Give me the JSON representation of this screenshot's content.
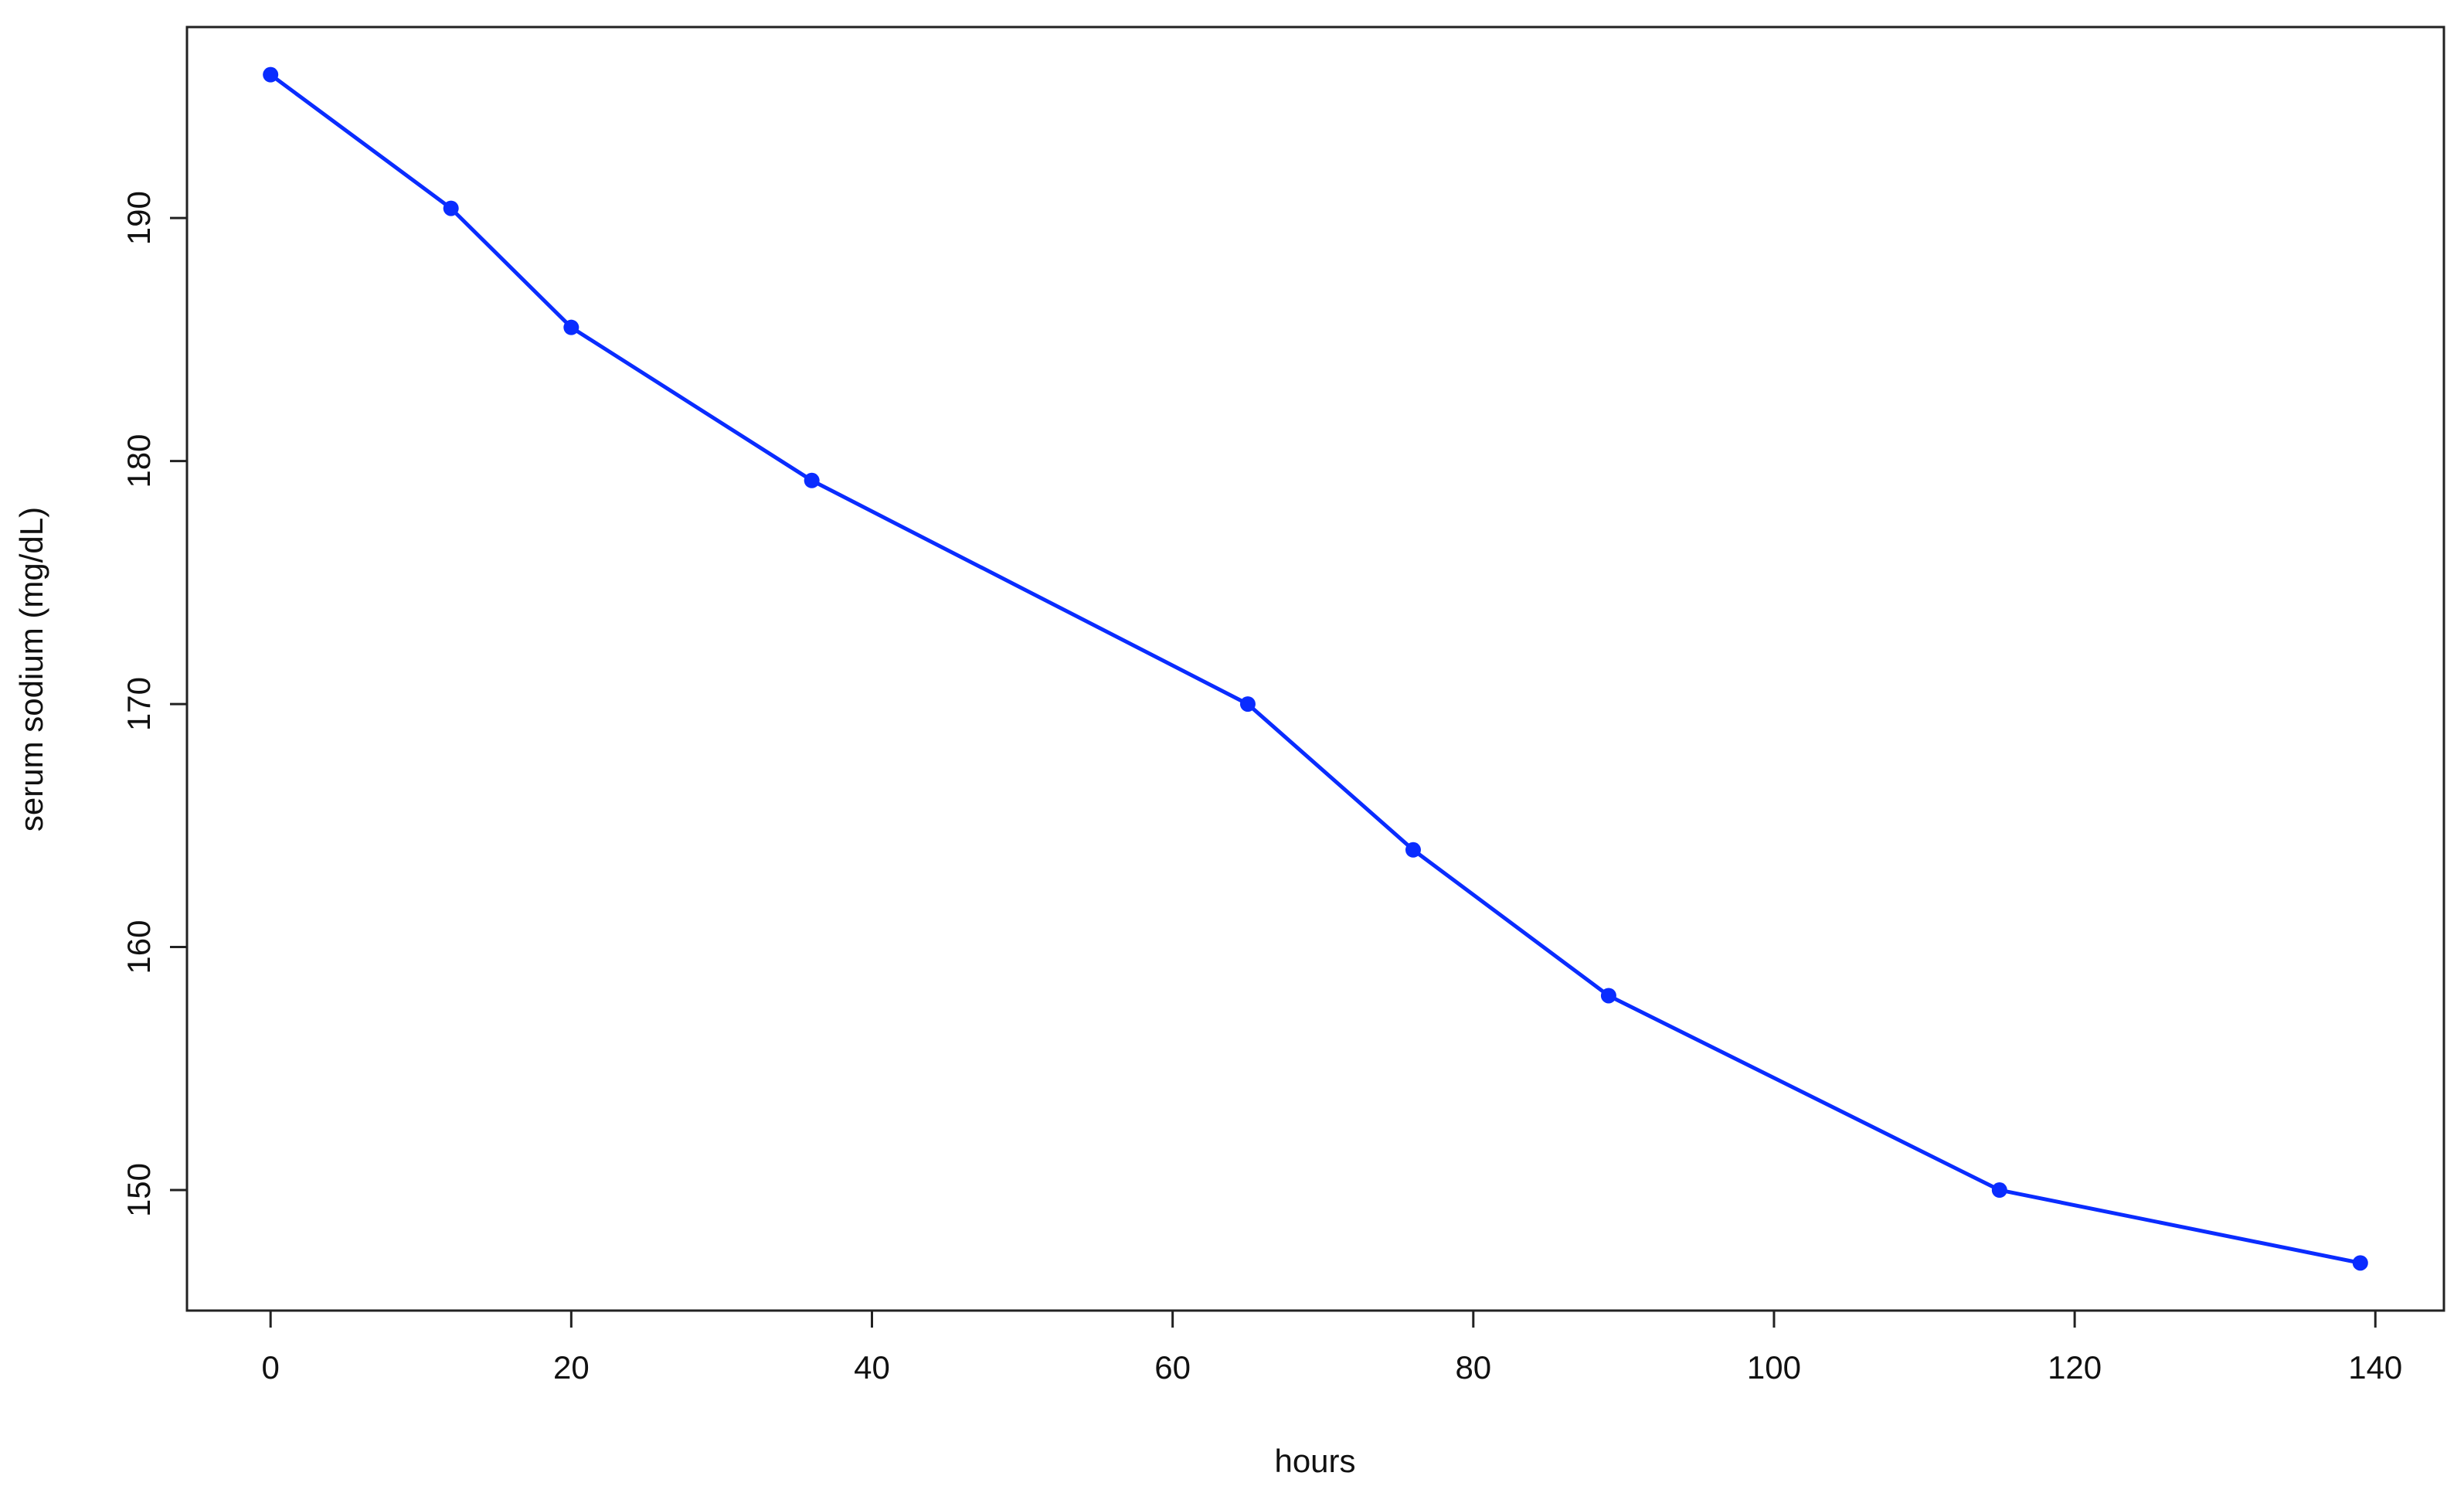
{
  "chart_data": {
    "type": "line",
    "x_label": "hours",
    "y_label": "serum sodium (mg/dL)",
    "x": [
      0,
      12,
      20,
      36,
      65,
      76,
      89,
      115,
      139
    ],
    "series": [
      {
        "color": "#0a2cff",
        "values": [
          195.9,
          190.4,
          185.5,
          179.2,
          170,
          164,
          158,
          150,
          147
        ]
      }
    ],
    "xlim": [
      -5.56,
      144.56
    ],
    "ylim": [
      145.04,
      197.86
    ],
    "xticks": [
      0,
      20,
      40,
      60,
      80,
      100,
      120,
      140
    ],
    "yticks": [
      150,
      160,
      170,
      180,
      190
    ]
  }
}
